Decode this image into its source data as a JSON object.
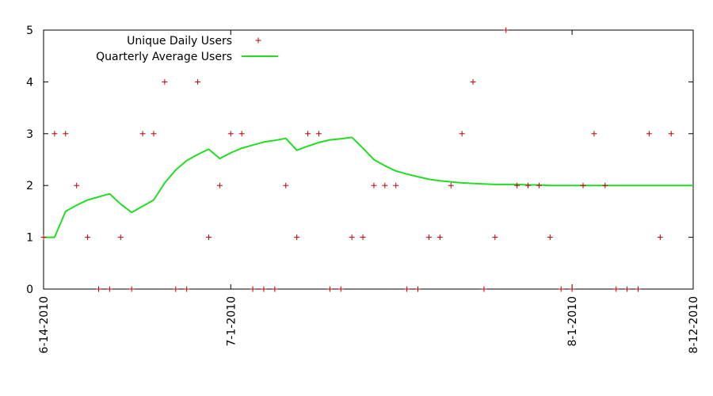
{
  "chart_data": {
    "type": "scatter",
    "title": "",
    "xlabel": "",
    "ylabel": "",
    "x_start": "6-14-2010",
    "x_end": "8-12-2010",
    "xlim": [
      "6-14-2010",
      "8-12-2010"
    ],
    "ylim": [
      0,
      5
    ],
    "y_ticks": [
      "0",
      "1",
      "2",
      "3",
      "4",
      "5"
    ],
    "x_tick_labels": [
      {
        "label": "6-14-2010",
        "date": "2010-06-14"
      },
      {
        "label": "7-1-2010",
        "date": "2010-07-01"
      },
      {
        "label": "8-1-2010",
        "date": "2010-08-01"
      },
      {
        "label": "8-12-2010",
        "date": "2010-08-12"
      }
    ],
    "grid": false,
    "legend_position": "top-left",
    "series": [
      {
        "name": "Unique Daily Users",
        "type": "scatter",
        "marker": "+",
        "color": "#c00000",
        "points": [
          {
            "x": "2010-06-14",
            "y": 1
          },
          {
            "x": "2010-06-15",
            "y": 3
          },
          {
            "x": "2010-06-16",
            "y": 3
          },
          {
            "x": "2010-06-17",
            "y": 2
          },
          {
            "x": "2010-06-18",
            "y": 1
          },
          {
            "x": "2010-06-19",
            "y": 0
          },
          {
            "x": "2010-06-20",
            "y": 0
          },
          {
            "x": "2010-06-21",
            "y": 1
          },
          {
            "x": "2010-06-22",
            "y": 0
          },
          {
            "x": "2010-06-23",
            "y": 3
          },
          {
            "x": "2010-06-24",
            "y": 3
          },
          {
            "x": "2010-06-25",
            "y": 4
          },
          {
            "x": "2010-06-26",
            "y": 0
          },
          {
            "x": "2010-06-27",
            "y": 0
          },
          {
            "x": "2010-06-28",
            "y": 4
          },
          {
            "x": "2010-06-29",
            "y": 1
          },
          {
            "x": "2010-06-30",
            "y": 2
          },
          {
            "x": "2010-07-01",
            "y": 3
          },
          {
            "x": "2010-07-02",
            "y": 3
          },
          {
            "x": "2010-07-03",
            "y": 0
          },
          {
            "x": "2010-07-04",
            "y": 0
          },
          {
            "x": "2010-07-05",
            "y": 0
          },
          {
            "x": "2010-07-06",
            "y": 2
          },
          {
            "x": "2010-07-07",
            "y": 1
          },
          {
            "x": "2010-07-08",
            "y": 3
          },
          {
            "x": "2010-07-09",
            "y": 3
          },
          {
            "x": "2010-07-10",
            "y": 0
          },
          {
            "x": "2010-07-11",
            "y": 0
          },
          {
            "x": "2010-07-12",
            "y": 1
          },
          {
            "x": "2010-07-13",
            "y": 1
          },
          {
            "x": "2010-07-14",
            "y": 2
          },
          {
            "x": "2010-07-15",
            "y": 2
          },
          {
            "x": "2010-07-16",
            "y": 2
          },
          {
            "x": "2010-07-17",
            "y": 0
          },
          {
            "x": "2010-07-18",
            "y": 0
          },
          {
            "x": "2010-07-19",
            "y": 1
          },
          {
            "x": "2010-07-20",
            "y": 1
          },
          {
            "x": "2010-07-21",
            "y": 2
          },
          {
            "x": "2010-07-22",
            "y": 3
          },
          {
            "x": "2010-07-23",
            "y": 4
          },
          {
            "x": "2010-07-24",
            "y": 0
          },
          {
            "x": "2010-07-25",
            "y": 1
          },
          {
            "x": "2010-07-26",
            "y": 5
          },
          {
            "x": "2010-07-27",
            "y": 2
          },
          {
            "x": "2010-07-28",
            "y": 2
          },
          {
            "x": "2010-07-29",
            "y": 2
          },
          {
            "x": "2010-07-30",
            "y": 1
          },
          {
            "x": "2010-07-31",
            "y": 0
          },
          {
            "x": "2010-08-01",
            "y": 0
          },
          {
            "x": "2010-08-02",
            "y": 2
          },
          {
            "x": "2010-08-03",
            "y": 3
          },
          {
            "x": "2010-08-04",
            "y": 2
          },
          {
            "x": "2010-08-05",
            "y": 0
          },
          {
            "x": "2010-08-06",
            "y": 0
          },
          {
            "x": "2010-08-07",
            "y": 0
          },
          {
            "x": "2010-08-08",
            "y": 3
          },
          {
            "x": "2010-08-09",
            "y": 1
          },
          {
            "x": "2010-08-10",
            "y": 3
          }
        ]
      },
      {
        "name": "Quarterly Average Users",
        "type": "line",
        "color": "#22dd22",
        "points": [
          {
            "x": "2010-06-14",
            "y": 1.0
          },
          {
            "x": "2010-06-15",
            "y": 1.0
          },
          {
            "x": "2010-06-16",
            "y": 1.5
          },
          {
            "x": "2010-06-17",
            "y": 1.62
          },
          {
            "x": "2010-06-18",
            "y": 1.72
          },
          {
            "x": "2010-06-19",
            "y": 1.78
          },
          {
            "x": "2010-06-20",
            "y": 1.84
          },
          {
            "x": "2010-06-21",
            "y": 1.64
          },
          {
            "x": "2010-06-22",
            "y": 1.48
          },
          {
            "x": "2010-06-23",
            "y": 1.6
          },
          {
            "x": "2010-06-24",
            "y": 1.72
          },
          {
            "x": "2010-06-25",
            "y": 2.05
          },
          {
            "x": "2010-06-26",
            "y": 2.3
          },
          {
            "x": "2010-06-27",
            "y": 2.48
          },
          {
            "x": "2010-06-28",
            "y": 2.6
          },
          {
            "x": "2010-06-29",
            "y": 2.7
          },
          {
            "x": "2010-06-30",
            "y": 2.52
          },
          {
            "x": "2010-07-01",
            "y": 2.63
          },
          {
            "x": "2010-07-02",
            "y": 2.72
          },
          {
            "x": "2010-07-03",
            "y": 2.78
          },
          {
            "x": "2010-07-04",
            "y": 2.84
          },
          {
            "x": "2010-07-05",
            "y": 2.87
          },
          {
            "x": "2010-07-06",
            "y": 2.91
          },
          {
            "x": "2010-07-07",
            "y": 2.68
          },
          {
            "x": "2010-07-08",
            "y": 2.76
          },
          {
            "x": "2010-07-09",
            "y": 2.83
          },
          {
            "x": "2010-07-10",
            "y": 2.88
          },
          {
            "x": "2010-07-11",
            "y": 2.9
          },
          {
            "x": "2010-07-12",
            "y": 2.93
          },
          {
            "x": "2010-07-13",
            "y": 2.72
          },
          {
            "x": "2010-07-14",
            "y": 2.5
          },
          {
            "x": "2010-07-15",
            "y": 2.38
          },
          {
            "x": "2010-07-16",
            "y": 2.28
          },
          {
            "x": "2010-07-17",
            "y": 2.22
          },
          {
            "x": "2010-07-18",
            "y": 2.17
          },
          {
            "x": "2010-07-19",
            "y": 2.12
          },
          {
            "x": "2010-07-20",
            "y": 2.09
          },
          {
            "x": "2010-07-21",
            "y": 2.07
          },
          {
            "x": "2010-07-22",
            "y": 2.05
          },
          {
            "x": "2010-07-23",
            "y": 2.04
          },
          {
            "x": "2010-07-24",
            "y": 2.03
          },
          {
            "x": "2010-07-25",
            "y": 2.02
          },
          {
            "x": "2010-07-26",
            "y": 2.02
          },
          {
            "x": "2010-07-27",
            "y": 2.02
          },
          {
            "x": "2010-07-28",
            "y": 2.01
          },
          {
            "x": "2010-07-29",
            "y": 2.01
          },
          {
            "x": "2010-07-30",
            "y": 2.0
          },
          {
            "x": "2010-07-31",
            "y": 2.0
          },
          {
            "x": "2010-08-01",
            "y": 2.0
          },
          {
            "x": "2010-08-02",
            "y": 2.0
          },
          {
            "x": "2010-08-03",
            "y": 2.0
          },
          {
            "x": "2010-08-04",
            "y": 2.0
          },
          {
            "x": "2010-08-05",
            "y": 2.0
          },
          {
            "x": "2010-08-06",
            "y": 2.0
          },
          {
            "x": "2010-08-07",
            "y": 2.0
          },
          {
            "x": "2010-08-08",
            "y": 2.0
          },
          {
            "x": "2010-08-09",
            "y": 2.0
          },
          {
            "x": "2010-08-10",
            "y": 2.0
          },
          {
            "x": "2010-08-11",
            "y": 2.0
          },
          {
            "x": "2010-08-12",
            "y": 2.0
          }
        ]
      }
    ]
  }
}
